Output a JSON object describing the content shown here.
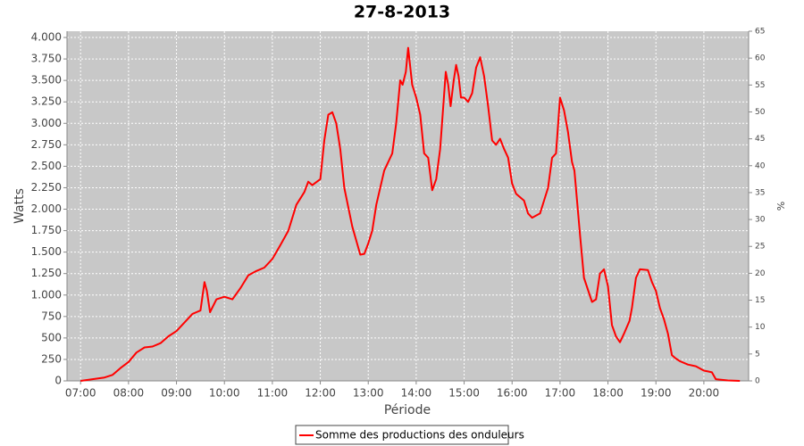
{
  "chart_data": {
    "type": "line",
    "title": "27-8-2013",
    "x_label": "Période",
    "y_label": "Watts",
    "y2_label": "%",
    "x": [
      420,
      435,
      450,
      460,
      470,
      480,
      490,
      500,
      510,
      520,
      530,
      540,
      550,
      560,
      565,
      570,
      575,
      578,
      582,
      590,
      600,
      610,
      620,
      630,
      640,
      650,
      660,
      670,
      680,
      690,
      700,
      705,
      710,
      720,
      725,
      730,
      735,
      740,
      745,
      750,
      760,
      770,
      775,
      780,
      785,
      790,
      800,
      810,
      815,
      820,
      823,
      827,
      830,
      835,
      840,
      845,
      850,
      855,
      860,
      865,
      870,
      877,
      880,
      883,
      887,
      890,
      893,
      896,
      900,
      905,
      910,
      915,
      920,
      925,
      930,
      935,
      940,
      945,
      950,
      955,
      960,
      965,
      975,
      980,
      985,
      995,
      1005,
      1010,
      1015,
      1020,
      1025,
      1030,
      1035,
      1038,
      1045,
      1050,
      1060,
      1065,
      1070,
      1075,
      1080,
      1085,
      1090,
      1095,
      1100,
      1107,
      1110,
      1115,
      1120,
      1130,
      1135,
      1140,
      1145,
      1150,
      1155,
      1160,
      1165,
      1170,
      1180,
      1190,
      1200,
      1205,
      1210,
      1215,
      1230,
      1245
    ],
    "series": [
      {
        "name": "Somme des productions des onduleurs",
        "color": "#ff0000",
        "values": [
          0,
          20,
          40,
          70,
          150,
          220,
          330,
          390,
          400,
          440,
          520,
          580,
          680,
          780,
          800,
          820,
          1150,
          1050,
          800,
          950,
          980,
          950,
          1080,
          1230,
          1280,
          1320,
          1420,
          1580,
          1750,
          2050,
          2200,
          2320,
          2280,
          2350,
          2800,
          3100,
          3130,
          3000,
          2700,
          2250,
          1800,
          1470,
          1480,
          1600,
          1750,
          2050,
          2450,
          2650,
          3000,
          3500,
          3450,
          3600,
          3880,
          3450,
          3300,
          3100,
          2650,
          2600,
          2220,
          2350,
          2700,
          3600,
          3450,
          3200,
          3500,
          3680,
          3550,
          3300,
          3300,
          3250,
          3350,
          3650,
          3770,
          3550,
          3200,
          2800,
          2750,
          2820,
          2700,
          2600,
          2300,
          2180,
          2100,
          1950,
          1900,
          1950,
          2250,
          2600,
          2650,
          3300,
          3150,
          2900,
          2550,
          2450,
          1700,
          1200,
          920,
          950,
          1250,
          1300,
          1100,
          650,
          520,
          450,
          550,
          700,
          850,
          1200,
          1300,
          1290,
          1150,
          1050,
          850,
          720,
          550,
          300,
          260,
          230,
          190,
          170,
          120,
          110,
          100,
          20,
          5,
          0
        ]
      }
    ],
    "xlim": [
      403,
      1256
    ],
    "xticks": [
      {
        "value": 420,
        "label": "07:00"
      },
      {
        "value": 480,
        "label": "08:00"
      },
      {
        "value": 540,
        "label": "09:00"
      },
      {
        "value": 600,
        "label": "10:00"
      },
      {
        "value": 660,
        "label": "11:00"
      },
      {
        "value": 720,
        "label": "12:00"
      },
      {
        "value": 780,
        "label": "13:00"
      },
      {
        "value": 840,
        "label": "14:00"
      },
      {
        "value": 900,
        "label": "15:00"
      },
      {
        "value": 960,
        "label": "16:00"
      },
      {
        "value": 1020,
        "label": "17:00"
      },
      {
        "value": 1080,
        "label": "18:00"
      },
      {
        "value": 1140,
        "label": "19:00"
      },
      {
        "value": 1200,
        "label": "20:00"
      }
    ],
    "ylim": [
      0,
      4073
    ],
    "yticks": [
      0,
      250,
      500,
      750,
      {
        "value": 1000,
        "label": "1.000"
      },
      {
        "value": 1250,
        "label": "1.250"
      },
      {
        "value": 1500,
        "label": "1.500"
      },
      {
        "value": 1750,
        "label": "1.750"
      },
      {
        "value": 2000,
        "label": "2.000"
      },
      {
        "value": 2250,
        "label": "2.250"
      },
      {
        "value": 2500,
        "label": "2.500"
      },
      {
        "value": 2750,
        "label": "2.750"
      },
      {
        "value": 3000,
        "label": "3.000"
      },
      {
        "value": 3250,
        "label": "3.250"
      },
      {
        "value": 3500,
        "label": "3.500"
      },
      {
        "value": 3750,
        "label": "3.750"
      },
      {
        "value": 4000,
        "label": "4.000"
      }
    ],
    "y2lim": [
      0,
      65
    ],
    "y2ticks": [
      0,
      5,
      10,
      15,
      20,
      25,
      30,
      35,
      40,
      45,
      50,
      55,
      60,
      65
    ],
    "grid": true,
    "legend": "bottom"
  }
}
